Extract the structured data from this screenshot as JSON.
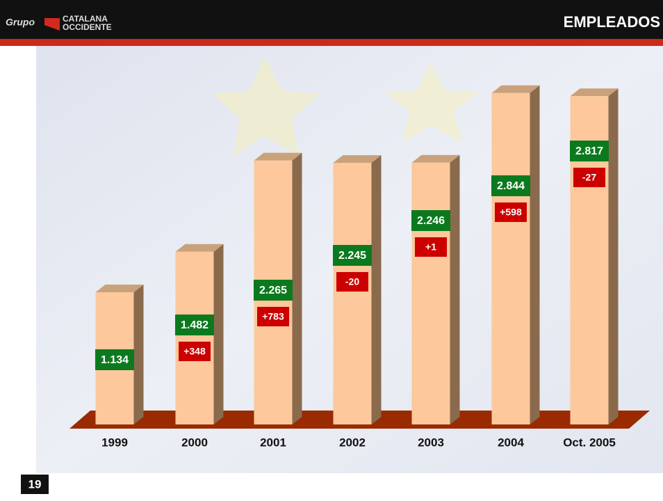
{
  "header": {
    "brand": "Grupo",
    "logo_line1": "CATALANA",
    "logo_line2": "OCCIDENTE"
  },
  "page_number": "19",
  "chart_data": {
    "type": "bar3d",
    "title": "EMPLEADOS",
    "categories": [
      "1999",
      "2000",
      "2001",
      "2002",
      "2003",
      "2004",
      "Oct. 2005"
    ],
    "values": [
      1134,
      1482,
      2265,
      2245,
      2246,
      2844,
      2817
    ],
    "value_labels": [
      "1.134",
      "1.482",
      "2.265",
      "2.245",
      "2.246",
      "2.844",
      "2.817"
    ],
    "changes": [
      null,
      348,
      783,
      -20,
      1,
      598,
      -27
    ],
    "change_labels": [
      null,
      "+348",
      "+783",
      "-20",
      "+1",
      "+598",
      "-27"
    ],
    "color": "#fcc89c",
    "label_color": "#0b7a1e",
    "change_color": "#cc0000",
    "floor_color": "#9a2a00"
  }
}
